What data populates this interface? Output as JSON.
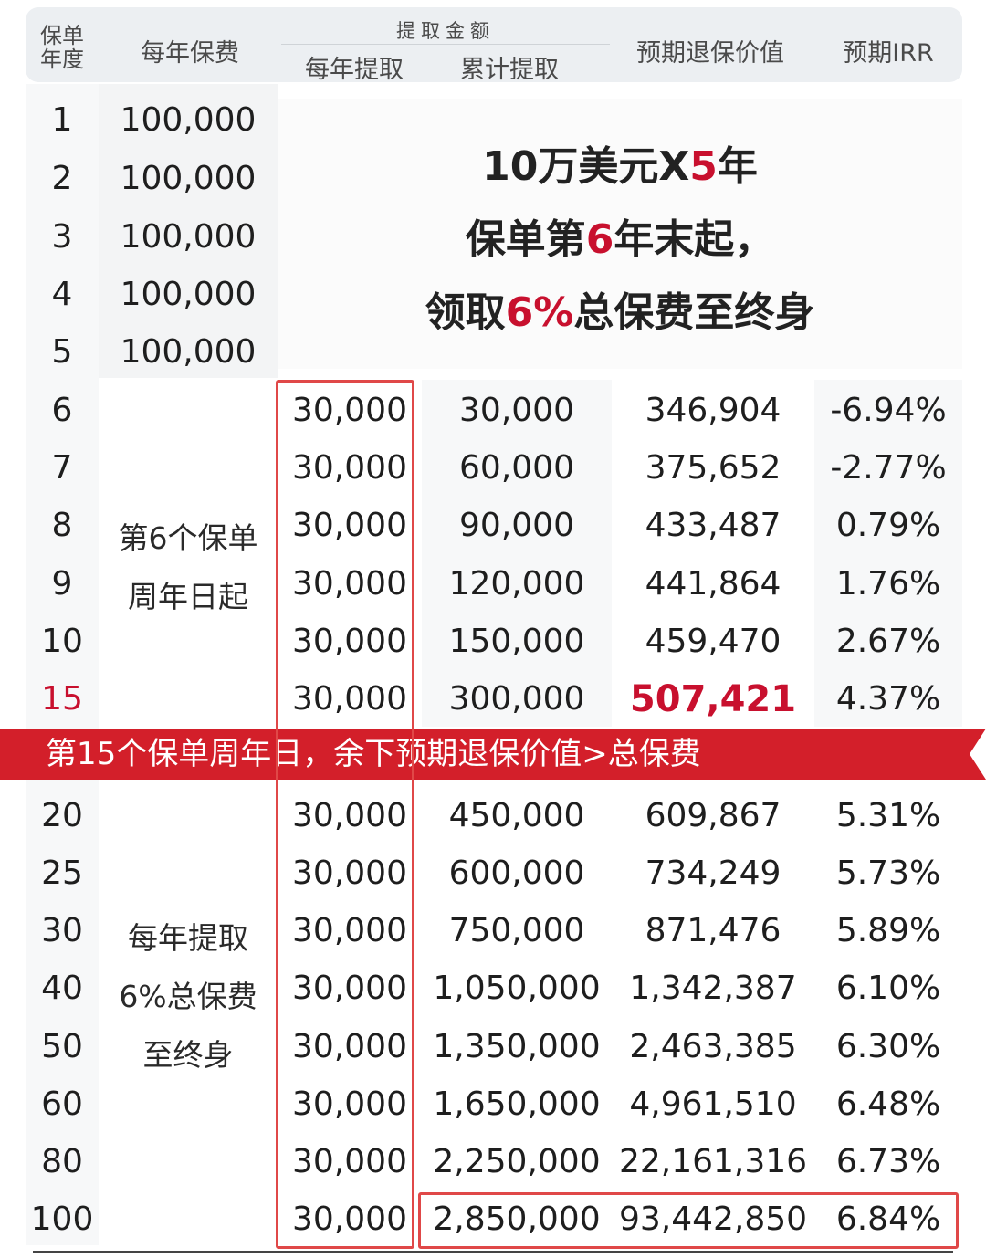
{
  "header": {
    "year": "保单年度",
    "year_l1": "保单",
    "year_l2": "年度",
    "premium": "每年保费",
    "withdraw_group": "提取金额",
    "annual_withdraw": "每年提取",
    "cumulative_withdraw": "累计提取",
    "surrender_value": "预期退保价值",
    "irr": "预期IRR"
  },
  "promo": {
    "line1_a": "10万美元X",
    "line1_b": "5",
    "line1_c": "年",
    "line2_a": "保单第",
    "line2_b": "6",
    "line2_c": "年末起，",
    "line3_a": "领取",
    "line3_b": "6%",
    "line3_c": "总保费至终身"
  },
  "premium_rows": [
    {
      "year": "1",
      "premium": "100,000"
    },
    {
      "year": "2",
      "premium": "100,000"
    },
    {
      "year": "3",
      "premium": "100,000"
    },
    {
      "year": "4",
      "premium": "100,000"
    },
    {
      "year": "5",
      "premium": "100,000"
    }
  ],
  "merged_a": {
    "line1": "第6个保单",
    "line2": "周年日起"
  },
  "rows_a": [
    {
      "year": "6",
      "annual": "30,000",
      "cumulative": "30,000",
      "surrender": "346,904",
      "irr": "-6.94%"
    },
    {
      "year": "7",
      "annual": "30,000",
      "cumulative": "60,000",
      "surrender": "375,652",
      "irr": "-2.77%"
    },
    {
      "year": "8",
      "annual": "30,000",
      "cumulative": "90,000",
      "surrender": "433,487",
      "irr": "0.79%"
    },
    {
      "year": "9",
      "annual": "30,000",
      "cumulative": "120,000",
      "surrender": "441,864",
      "irr": "1.76%"
    },
    {
      "year": "10",
      "annual": "30,000",
      "cumulative": "150,000",
      "surrender": "459,470",
      "irr": "2.67%"
    },
    {
      "year": "15",
      "annual": "30,000",
      "cumulative": "300,000",
      "surrender": "507,421",
      "irr": "4.37%"
    }
  ],
  "banner": "第15个保单周年日，余下预期退保价值>总保费",
  "merged_b": {
    "line1": "每年提取",
    "line2": "6%总保费",
    "line3": "至终身"
  },
  "rows_b": [
    {
      "year": "20",
      "annual": "30,000",
      "cumulative": "450,000",
      "surrender": "609,867",
      "irr": "5.31%"
    },
    {
      "year": "25",
      "annual": "30,000",
      "cumulative": "600,000",
      "surrender": "734,249",
      "irr": "5.73%"
    },
    {
      "year": "30",
      "annual": "30,000",
      "cumulative": "750,000",
      "surrender": "871,476",
      "irr": "5.89%"
    },
    {
      "year": "40",
      "annual": "30,000",
      "cumulative": "1,050,000",
      "surrender": "1,342,387",
      "irr": "6.10%"
    },
    {
      "year": "50",
      "annual": "30,000",
      "cumulative": "1,350,000",
      "surrender": "2,463,385",
      "irr": "6.30%"
    },
    {
      "year": "60",
      "annual": "30,000",
      "cumulative": "1,650,000",
      "surrender": "4,961,510",
      "irr": "6.48%"
    },
    {
      "year": "80",
      "annual": "30,000",
      "cumulative": "2,250,000",
      "surrender": "22,161,316",
      "irr": "6.73%"
    },
    {
      "year": "100",
      "annual": "30,000",
      "cumulative": "2,850,000",
      "surrender": "93,442,850",
      "irr": "6.84%"
    }
  ],
  "colors": {
    "accent_red": "#c8102e",
    "banner_red": "#d31f2a",
    "box_red": "#e04848"
  }
}
